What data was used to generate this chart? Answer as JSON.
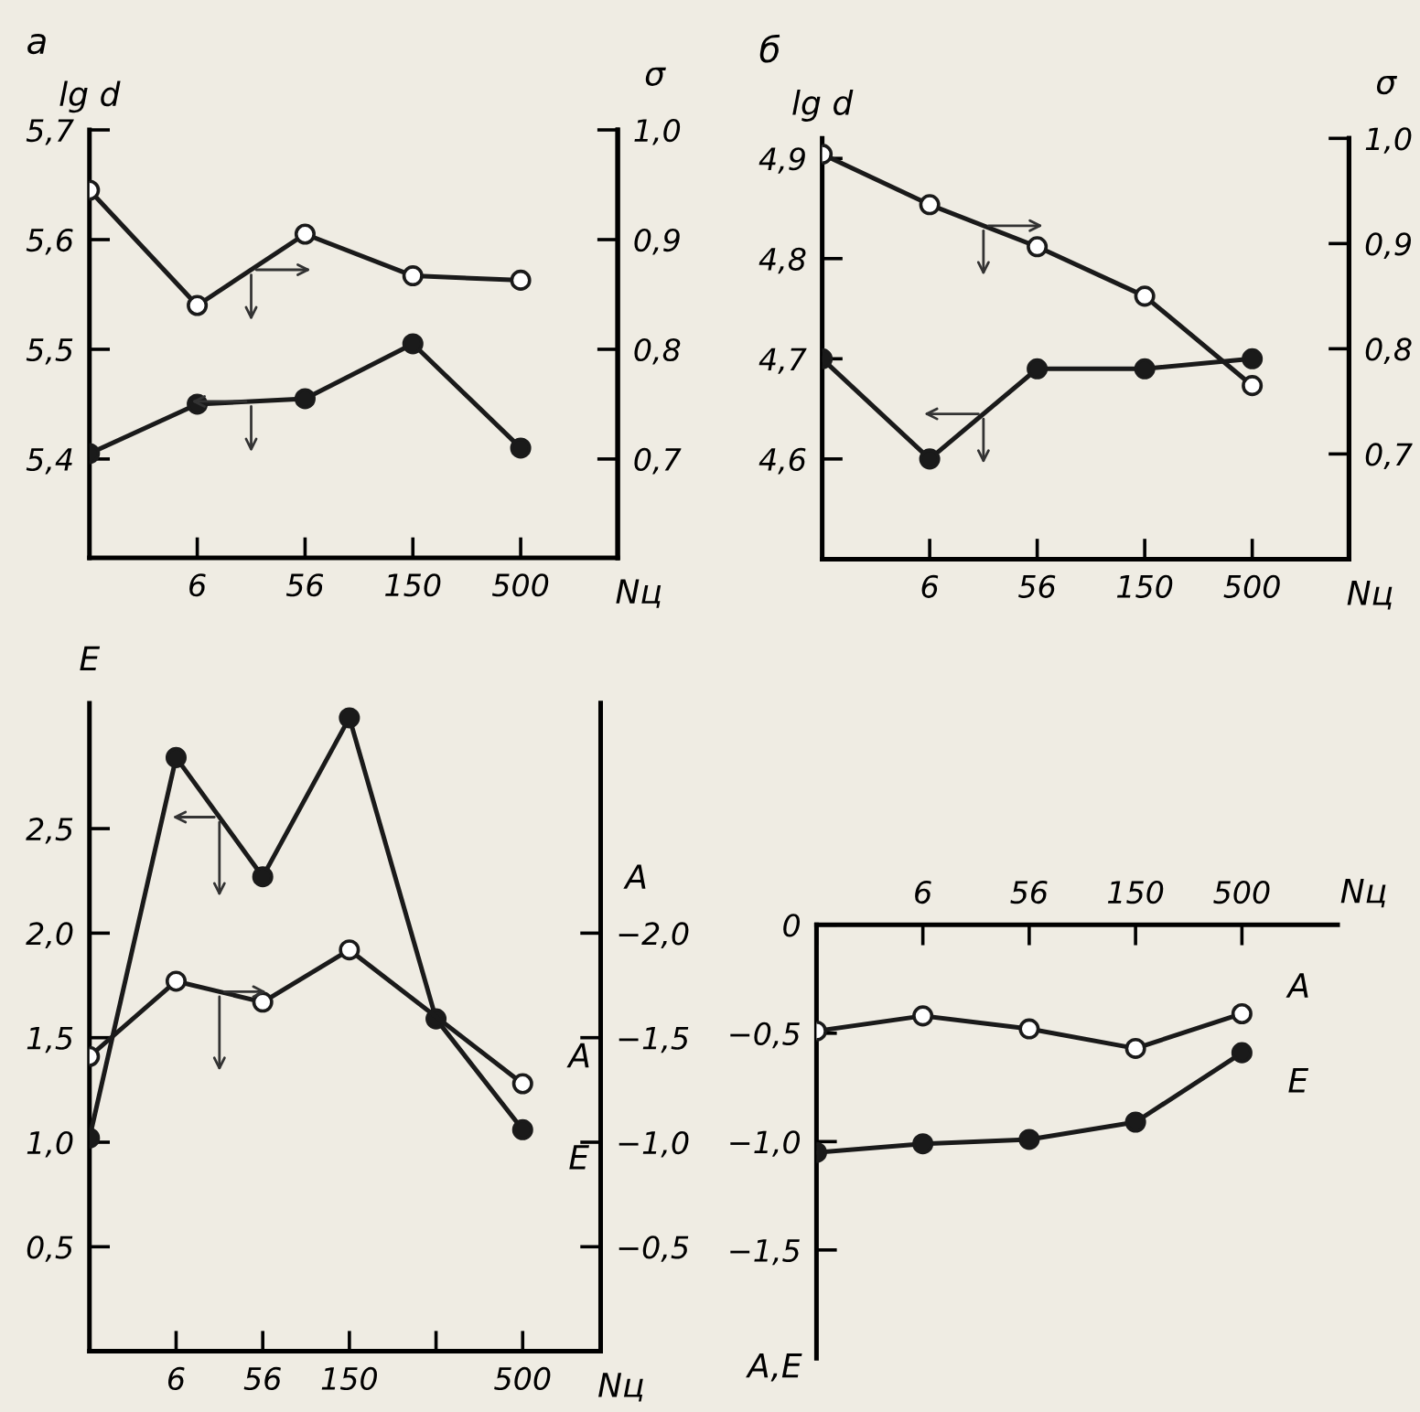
{
  "chart_data": [
    {
      "type": "line",
      "title": "а",
      "ylabel": "lg d",
      "y2label": "σ",
      "xlabel": "Nц",
      "marker": "circle",
      "line_style": "solid",
      "grid": false,
      "legend": false,
      "categories": [
        null,
        "6",
        "56",
        "150",
        "500"
      ],
      "ylim": [
        5.31,
        5.7
      ],
      "yticks": [
        {
          "value": 5.4,
          "label": "5,4"
        },
        {
          "value": 5.5,
          "label": "5,5"
        },
        {
          "value": 5.6,
          "label": "5,6"
        },
        {
          "value": 5.7,
          "label": "5,7"
        }
      ],
      "y2lim": [
        0.61,
        1.0
      ],
      "y2ticks": [
        {
          "value": 0.7,
          "label": "0,7"
        },
        {
          "value": 0.8,
          "label": "0,8"
        },
        {
          "value": 0.9,
          "label": "0,9"
        },
        {
          "value": 1.0,
          "label": "1,0"
        }
      ],
      "series": [
        {
          "color": "#1a1a1a",
          "values": [
            5.405,
            5.45,
            5.455,
            5.505,
            5.41
          ]
        },
        {
          "color": "#1a1a1a",
          "axis": "y2",
          "values": [
            0.945,
            0.84,
            0.905,
            0.867,
            0.863
          ]
        }
      ]
    },
    {
      "type": "line",
      "title": "б",
      "ylabel": "lg d",
      "y2label": "σ",
      "xlabel": "Nц",
      "marker": "circle",
      "line_style": "solid",
      "grid": false,
      "legend": false,
      "categories": [
        null,
        "6",
        "56",
        "150",
        "500"
      ],
      "ylim": [
        4.5,
        4.92
      ],
      "yticks": [
        {
          "value": 4.6,
          "label": "4,6"
        },
        {
          "value": 4.7,
          "label": "4,7"
        },
        {
          "value": 4.8,
          "label": "4,8"
        },
        {
          "value": 4.9,
          "label": "4,9"
        }
      ],
      "y2lim": [
        0.6,
        1.0
      ],
      "y2ticks": [
        {
          "value": 0.7,
          "label": "0,7"
        },
        {
          "value": 0.8,
          "label": "0,8"
        },
        {
          "value": 0.9,
          "label": "0,9"
        },
        {
          "value": 1.0,
          "label": "1,0"
        }
      ],
      "series": [
        {
          "color": "#1a1a1a",
          "values": [
            4.7,
            4.6,
            4.69,
            4.69,
            4.7
          ]
        },
        {
          "color": "#1a1a1a",
          "axis": "y2",
          "values": [
            0.985,
            0.937,
            0.897,
            0.85,
            0.765
          ]
        }
      ]
    },
    {
      "type": "line",
      "ylabel": "E",
      "y2label": "A",
      "xlabel": "Nц",
      "marker": "circle",
      "line_style": "solid",
      "grid": false,
      "legend": false,
      "categories": [
        null,
        "6",
        "56",
        "150",
        null,
        "500"
      ],
      "ylim": [
        0,
        3.1
      ],
      "yticks": [
        {
          "value": 0.5,
          "label": "0,5"
        },
        {
          "value": 1.0,
          "label": "1,0"
        },
        {
          "value": 1.5,
          "label": "1,5"
        },
        {
          "value": 2.0,
          "label": "2,0"
        },
        {
          "value": 2.5,
          "label": "2,5"
        }
      ],
      "y2lim": [
        0,
        -3.1
      ],
      "y2ticks": [
        {
          "value": -0.5,
          "label": "−0,5"
        },
        {
          "value": -1.0,
          "label": "−1,0"
        },
        {
          "value": -1.5,
          "label": "−1,5"
        },
        {
          "value": -2.0,
          "label": "−2,0"
        }
      ],
      "series": [
        {
          "name": "E",
          "color": "#1a1a1a",
          "values": [
            1.02,
            2.84,
            2.27,
            3.03,
            1.59,
            1.06
          ]
        },
        {
          "name": "A",
          "color": "#1a1a1a",
          "axis": "y2",
          "values": [
            -1.41,
            -1.77,
            -1.67,
            -1.92,
            null,
            -1.28
          ]
        }
      ]
    },
    {
      "type": "line",
      "ylabel": "A,E",
      "x2label": "Nц",
      "marker": "circle",
      "line_style": "solid",
      "grid": false,
      "legend": false,
      "categories": [
        null,
        "6",
        "56",
        "150",
        "500"
      ],
      "ylim": [
        -2.0,
        0
      ],
      "yticks": [
        {
          "value": -1.5,
          "label": "−1,5"
        },
        {
          "value": -1.0,
          "label": "−1,0"
        },
        {
          "value": -0.5,
          "label": "−0,5"
        },
        0
      ],
      "series": [
        {
          "name": "E",
          "color": "#1a1a1a",
          "values": [
            -1.05,
            -1.01,
            -0.99,
            -0.91,
            -0.59
          ]
        },
        {
          "name": "A",
          "color": "#1a1a1a",
          "values": [
            -0.49,
            -0.42,
            -0.48,
            -0.57,
            -0.41
          ]
        }
      ]
    }
  ]
}
